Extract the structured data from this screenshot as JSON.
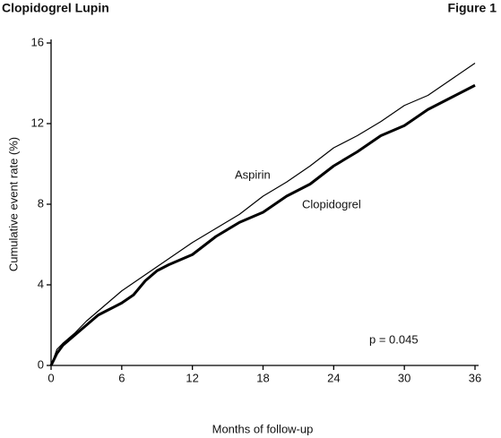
{
  "header": {
    "left": "Clopidogrel Lupin",
    "right": "Figure 1"
  },
  "chart_data": {
    "type": "line",
    "xlabel": "Months of follow-up",
    "ylabel": "Cumulative event rate (%)",
    "annotations": [
      "Aspirin",
      "Clopidogrel",
      "p = 0.045"
    ],
    "x": [
      0,
      0.5,
      1,
      2,
      3,
      4,
      5,
      6,
      7,
      8,
      9,
      10,
      12,
      14,
      16,
      18,
      20,
      22,
      24,
      26,
      28,
      30,
      32,
      34,
      36
    ],
    "series": [
      {
        "name": "Aspirin",
        "color": "#000000",
        "width": 1.2,
        "values": [
          0,
          0.8,
          1.1,
          1.6,
          2.2,
          2.7,
          3.2,
          3.7,
          4.1,
          4.5,
          4.9,
          5.3,
          6.1,
          6.8,
          7.5,
          8.4,
          9.1,
          9.9,
          10.8,
          11.4,
          12.1,
          12.9,
          13.4,
          14.2,
          15.0
        ]
      },
      {
        "name": "Clopidogrel",
        "color": "#000000",
        "width": 3,
        "values": [
          0,
          0.6,
          1.0,
          1.5,
          2.0,
          2.5,
          2.8,
          3.1,
          3.5,
          4.2,
          4.7,
          5.0,
          5.5,
          6.4,
          7.1,
          7.6,
          8.4,
          9.0,
          9.9,
          10.6,
          11.4,
          11.9,
          12.7,
          13.3,
          13.9
        ]
      }
    ],
    "xlim": [
      0,
      36
    ],
    "xticks": [
      0,
      6,
      12,
      18,
      24,
      30,
      36
    ],
    "ylim": [
      0,
      16
    ],
    "yticks": [
      0,
      4,
      8,
      12,
      16
    ],
    "grid": false
  }
}
